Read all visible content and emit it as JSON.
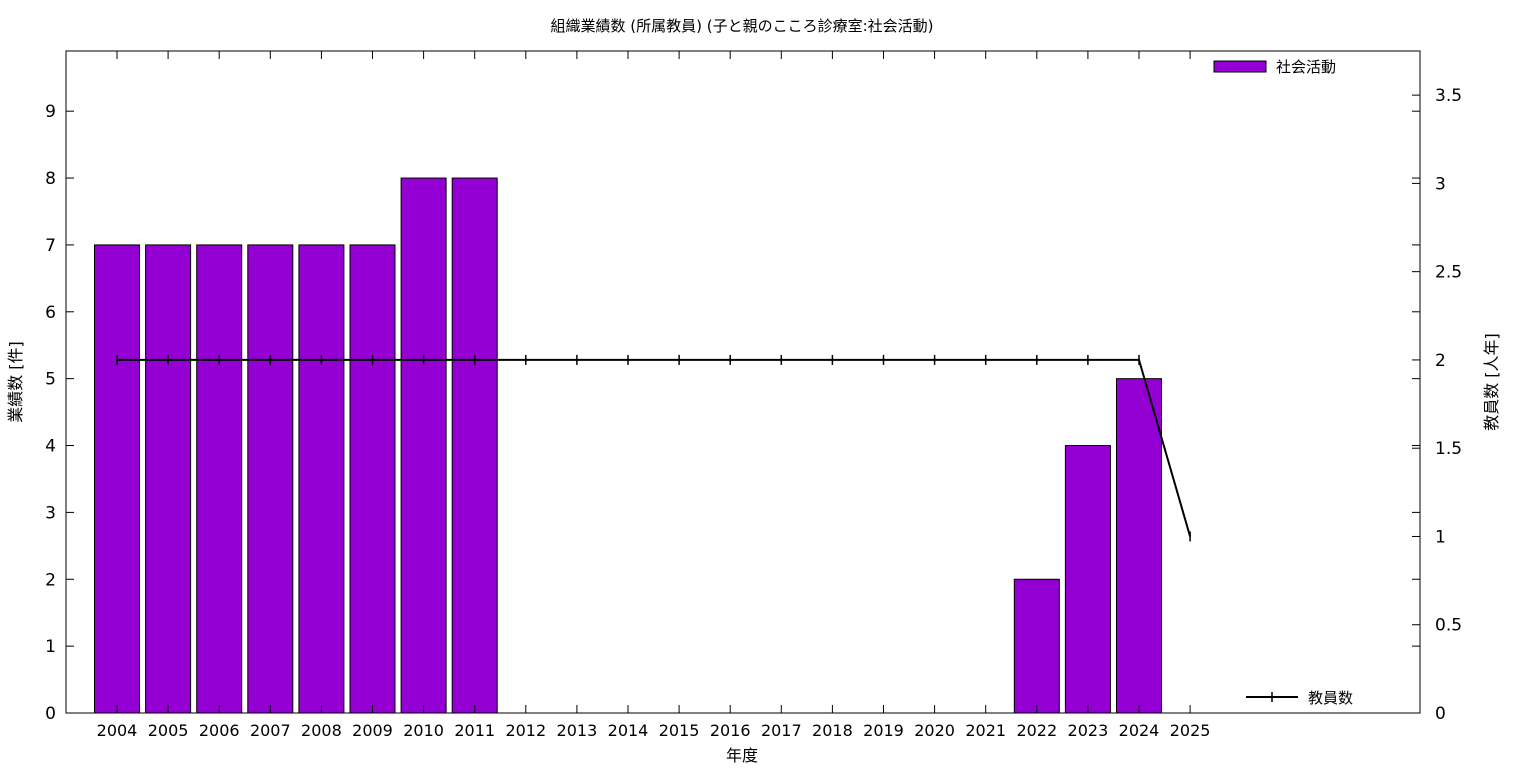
{
  "chart_data": {
    "type": "bar",
    "title": "組織業績数 (所属教員) (子と親のこころ診療室:社会活動)",
    "xlabel": "年度",
    "ylabel": "業績数 [件]",
    "y2label": "教員数 [人年]",
    "categories": [
      "2004",
      "2005",
      "2006",
      "2007",
      "2008",
      "2009",
      "2010",
      "2011",
      "2012",
      "2013",
      "2014",
      "2015",
      "2016",
      "2017",
      "2018",
      "2019",
      "2020",
      "2021",
      "2022",
      "2023",
      "2024",
      "2025"
    ],
    "ylim": [
      0,
      9.9
    ],
    "yticks": [
      0,
      1,
      2,
      3,
      4,
      5,
      6,
      7,
      8,
      9
    ],
    "y2lim": [
      0,
      3.75
    ],
    "y2ticks": [
      "0",
      "0.5",
      "1",
      "1.5",
      "2",
      "2.5",
      "3",
      "3.5"
    ],
    "grid": false,
    "series": [
      {
        "name": "社会活動",
        "type": "bar",
        "axis": "left",
        "color": "#9400d3",
        "legend_position": "top-right",
        "values": [
          7,
          7,
          7,
          7,
          7,
          7,
          8,
          8,
          0,
          0,
          0,
          0,
          0,
          0,
          0,
          0,
          0,
          0,
          2,
          4,
          5,
          0
        ]
      },
      {
        "name": "教員数",
        "type": "line",
        "axis": "right",
        "color": "#000000",
        "legend_position": "bottom-right",
        "values": [
          2,
          2,
          2,
          2,
          2,
          2,
          2,
          2,
          2,
          2,
          2,
          2,
          2,
          2,
          2,
          2,
          2,
          2,
          2,
          2,
          2,
          1
        ]
      }
    ]
  }
}
